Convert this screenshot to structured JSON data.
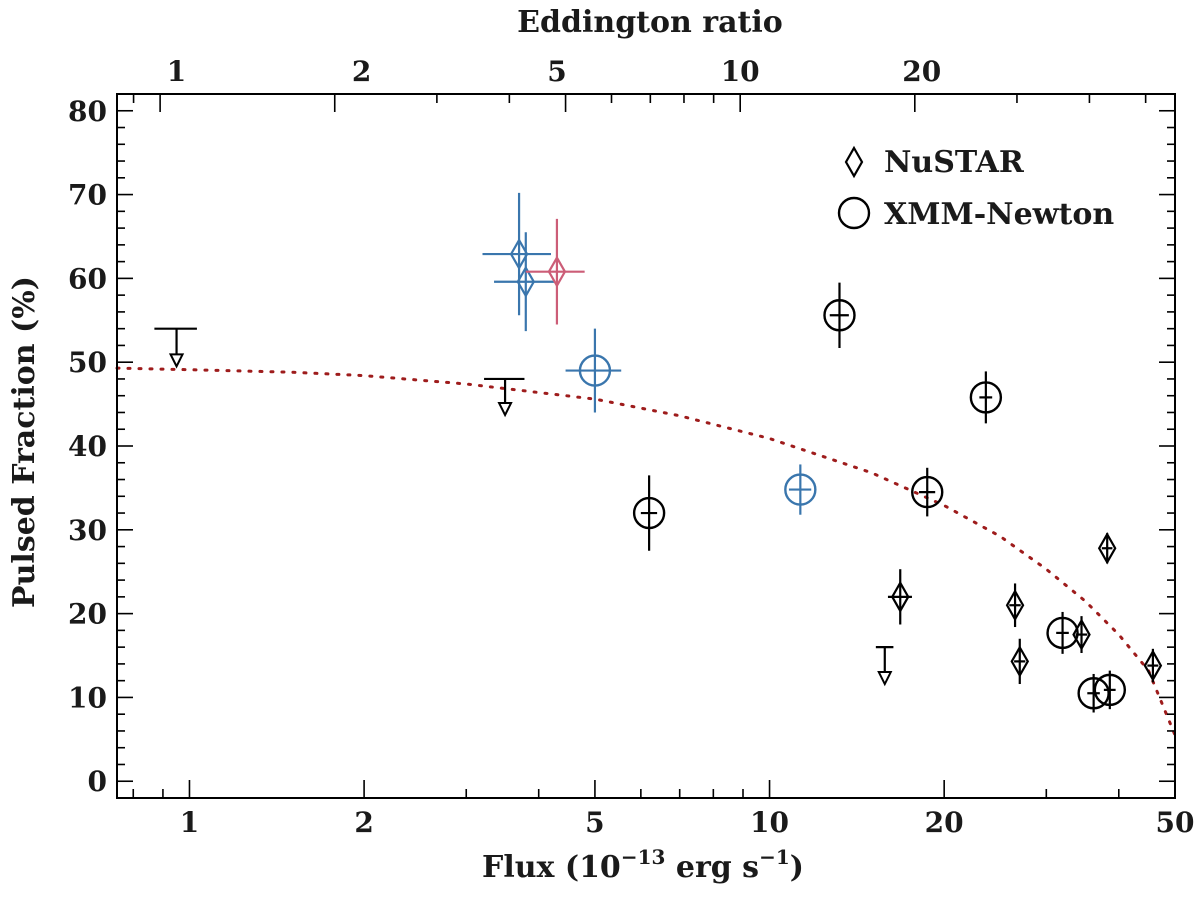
{
  "chart_data": {
    "type": "scatter",
    "x_scale": "log",
    "xlim": [
      0.75,
      50
    ],
    "ylim": [
      -2,
      82
    ],
    "grid": false,
    "xlabel_main": "Flux (10",
    "xlabel_exp": "−13",
    "xlabel_tail": " erg s",
    "xlabel_exp2": "−1",
    "xlabel_close": ")",
    "ylabel": "Pulsed Fraction (%)",
    "top_axis_label": "Eddington ratio",
    "x_ticks": [
      {
        "value": 1,
        "label": "1"
      },
      {
        "value": 2,
        "label": "2"
      },
      {
        "value": 5,
        "label": "5"
      },
      {
        "value": 10,
        "label": "10"
      },
      {
        "value": 20,
        "label": "20"
      },
      {
        "value": 50,
        "label": "50"
      }
    ],
    "y_ticks": [
      {
        "value": 0,
        "label": "0"
      },
      {
        "value": 10,
        "label": "10"
      },
      {
        "value": 20,
        "label": "20"
      },
      {
        "value": 30,
        "label": "30"
      },
      {
        "value": 40,
        "label": "40"
      },
      {
        "value": 50,
        "label": "50"
      },
      {
        "value": 60,
        "label": "60"
      },
      {
        "value": 70,
        "label": "70"
      },
      {
        "value": 80,
        "label": "80"
      }
    ],
    "top_ticks": [
      {
        "value": 0.95,
        "label": "1"
      },
      {
        "value": 1.98,
        "label": "2"
      },
      {
        "value": 4.3,
        "label": "5"
      },
      {
        "value": 8.9,
        "label": "10"
      },
      {
        "value": 18.3,
        "label": "20"
      }
    ],
    "legend": {
      "position": "top-right",
      "entries": [
        {
          "marker": "diamond",
          "label": "NuSTAR"
        },
        {
          "marker": "circle",
          "label": "XMM-Newton"
        }
      ]
    },
    "colors": {
      "black": "#000000",
      "blue": "#3a76ad",
      "pink": "#cc5d77",
      "model": "#9e1c1c"
    },
    "model_curve": {
      "style": "dotted",
      "points": [
        [
          0.75,
          49.3
        ],
        [
          1,
          49.1
        ],
        [
          1.5,
          48.8
        ],
        [
          2,
          48.4
        ],
        [
          3,
          47.4
        ],
        [
          5,
          45.6
        ],
        [
          7,
          43.6
        ],
        [
          10,
          40.9
        ],
        [
          15,
          36.8
        ],
        [
          20,
          32.9
        ],
        [
          25,
          29.2
        ],
        [
          30,
          25.3
        ],
        [
          35,
          21.5
        ],
        [
          40,
          17.5
        ],
        [
          45,
          13.2
        ],
        [
          50,
          5.5
        ]
      ]
    },
    "points": [
      {
        "marker": "diamond",
        "color": "black",
        "x": 16.8,
        "xerr": 0.8,
        "y": 22,
        "yerr": 3.3
      },
      {
        "marker": "diamond",
        "color": "black",
        "x": 26.5,
        "xerr": 0.6,
        "y": 21,
        "yerr": 2.6
      },
      {
        "marker": "diamond",
        "color": "black",
        "x": 27,
        "xerr": 0.6,
        "y": 14.3,
        "yerr": 2.7
      },
      {
        "marker": "diamond",
        "color": "black",
        "x": 34.5,
        "xerr": 0.8,
        "y": 17.5,
        "yerr": 2.2
      },
      {
        "marker": "diamond",
        "color": "black",
        "x": 38.2,
        "xerr": 0.8,
        "y": 27.8,
        "yerr": 1.8
      },
      {
        "marker": "diamond",
        "color": "black",
        "x": 45.8,
        "xerr": 1.0,
        "y": 13.8,
        "yerr": 2.0
      },
      {
        "marker": "circle",
        "color": "black",
        "x": 6.2,
        "xerr": 0.2,
        "y": 32,
        "yerr": 4.5
      },
      {
        "marker": "circle",
        "color": "black",
        "x": 13.2,
        "xerr": 0.5,
        "y": 55.6,
        "yerr": 3.9
      },
      {
        "marker": "circle",
        "color": "black",
        "x": 18.7,
        "xerr": 0.6,
        "y": 34.5,
        "yerr": 2.9
      },
      {
        "marker": "circle",
        "color": "black",
        "x": 23.6,
        "xerr": 0.6,
        "y": 45.8,
        "yerr": 3.1
      },
      {
        "marker": "circle",
        "color": "black",
        "x": 32,
        "xerr": 0.8,
        "y": 17.7,
        "yerr": 2.5
      },
      {
        "marker": "circle",
        "color": "black",
        "x": 36.2,
        "xerr": 0.9,
        "y": 10.5,
        "yerr": 2.3
      },
      {
        "marker": "circle",
        "color": "black",
        "x": 38.6,
        "xerr": 0.9,
        "y": 10.9,
        "yerr": 2.3
      },
      {
        "marker": "diamond",
        "color": "blue",
        "x": 3.7,
        "xerr": 0.5,
        "y": 62.9,
        "yerr": 7.3
      },
      {
        "marker": "diamond",
        "color": "blue",
        "x": 3.8,
        "xerr": 0.45,
        "y": 59.6,
        "yerr": 5.9
      },
      {
        "marker": "diamond",
        "color": "pink",
        "x": 4.3,
        "xerr": 0.5,
        "y": 60.8,
        "yerr": 6.3
      },
      {
        "marker": "circle",
        "color": "blue",
        "x": 5,
        "xerr": 0.55,
        "y": 49,
        "yerr": 5
      },
      {
        "marker": "circle",
        "color": "blue",
        "x": 11.3,
        "xerr": 0.5,
        "y": 34.8,
        "yerr": 3
      }
    ],
    "upper_limits": [
      {
        "x": 0.95,
        "xerr": 0.08,
        "y": 54,
        "arrow_to": 49.5
      },
      {
        "x": 3.5,
        "xerr": 0.28,
        "y": 48,
        "arrow_to": 43.7
      },
      {
        "x": 15.8,
        "xerr": 0.55,
        "y": 16,
        "arrow_to": 11.6
      }
    ]
  }
}
